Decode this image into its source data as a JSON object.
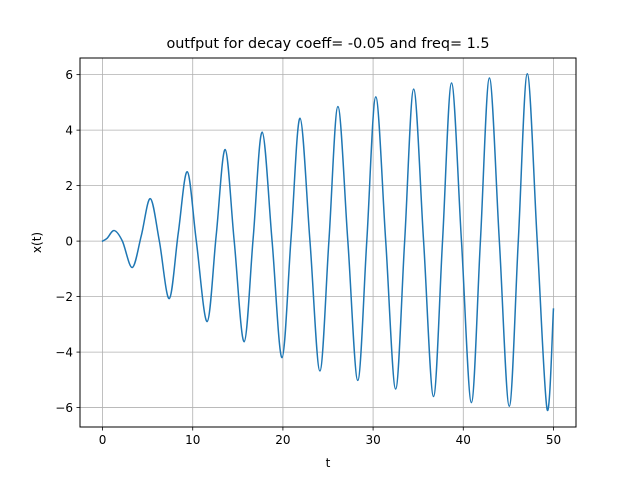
{
  "chart_data": {
    "type": "line",
    "title": "outfput for decay coeff= -0.05 and freq= 1.5",
    "xlabel": "t",
    "ylabel": "x(t)",
    "xlim": [
      -2.5,
      52.5
    ],
    "ylim": [
      -6.7,
      6.6
    ],
    "x_ticks": [
      0,
      10,
      20,
      30,
      40,
      50
    ],
    "x_tick_labels": [
      "0",
      "10",
      "20",
      "30",
      "40",
      "50"
    ],
    "y_ticks": [
      -6,
      -4,
      -2,
      0,
      2,
      4,
      6
    ],
    "y_tick_labels": [
      "−6",
      "−4",
      "−2",
      "0",
      "2",
      "4",
      "6"
    ],
    "grid": true,
    "series": [
      {
        "color": "#1f77b4",
        "x": [
          0,
          0.5,
          1.3,
          2.2,
          3.3,
          4.3,
          5.3,
          6.3,
          7.4,
          8.4,
          9.4,
          10.4,
          11.6,
          12.6,
          13.6,
          14.6,
          15.7,
          16.7,
          17.7,
          18.8,
          19.9,
          20.9,
          21.9,
          23.0,
          24.1,
          25.1,
          26.1,
          27.2,
          28.3,
          29.3,
          30.3,
          31.4,
          32.5,
          33.5,
          34.5,
          35.6,
          36.7,
          37.7,
          38.7,
          39.8,
          40.9,
          41.9,
          42.9,
          44.0,
          45.1,
          46.1,
          47.1,
          48.2,
          49.3,
          50.0
        ],
        "y": [
          0,
          0.1,
          0.38,
          0.0,
          -0.95,
          0.2,
          1.53,
          0.0,
          -2.07,
          0.3,
          2.5,
          0.0,
          -2.9,
          0.2,
          3.3,
          0.0,
          -3.63,
          0.1,
          3.93,
          0.0,
          -4.2,
          0.1,
          4.43,
          0.0,
          -4.68,
          0.0,
          4.85,
          0.0,
          -5.02,
          0.0,
          5.2,
          0.0,
          -5.33,
          0.0,
          5.48,
          0.0,
          -5.6,
          0.0,
          5.7,
          0.0,
          -5.82,
          0.0,
          5.88,
          0.0,
          -5.95,
          0.0,
          6.03,
          0.0,
          -6.07,
          -2.45
        ]
      }
    ]
  }
}
